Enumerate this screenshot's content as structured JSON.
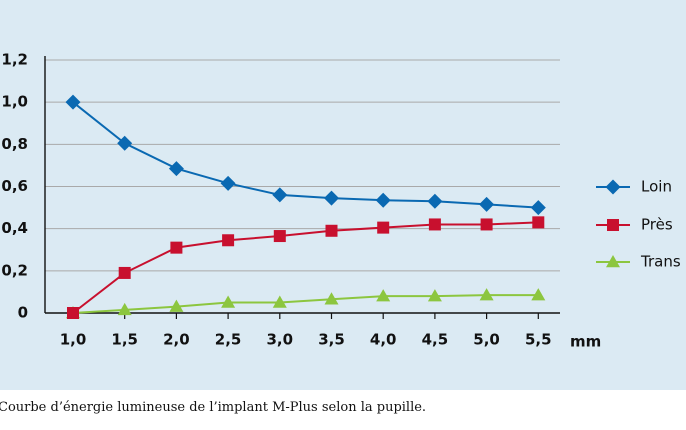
{
  "chart_data": {
    "type": "line",
    "x": [
      "1,0",
      "1,5",
      "2,0",
      "2,5",
      "3,0",
      "3,5",
      "4,0",
      "4,5",
      "5,0",
      "5,5"
    ],
    "xunit": "mm",
    "ylim": [
      0,
      1.2
    ],
    "yticks": [
      "0",
      "0,2",
      "0,4",
      "0,6",
      "0,8",
      "1,0",
      "1,2"
    ],
    "grid": true,
    "legend_position": "right",
    "series": [
      {
        "name": "Loin",
        "marker": "diamond",
        "color": "#0a69b2",
        "values": [
          1.0,
          0.805,
          0.685,
          0.615,
          0.56,
          0.545,
          0.535,
          0.53,
          0.515,
          0.5
        ]
      },
      {
        "name": "Près",
        "marker": "square",
        "color": "#c8102e",
        "values": [
          0.0,
          0.19,
          0.31,
          0.345,
          0.365,
          0.39,
          0.405,
          0.42,
          0.42,
          0.43
        ]
      },
      {
        "name": "Trans",
        "marker": "triangle",
        "color": "#8cc63f",
        "values": [
          0.0,
          0.015,
          0.03,
          0.05,
          0.05,
          0.065,
          0.08,
          0.08,
          0.085,
          0.085
        ]
      }
    ]
  },
  "caption": "Courbe d’énergie lumineuse de l’implant M-Plus selon la pupille."
}
